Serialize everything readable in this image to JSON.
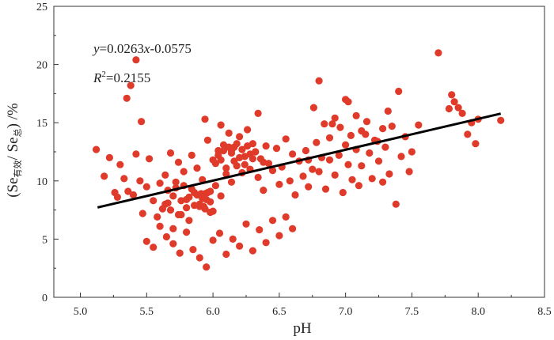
{
  "chart_data": {
    "type": "scatter",
    "title": "",
    "xlabel": "pH",
    "ylabel": {
      "prefix": "(Se",
      "sub1": "有效",
      "mid": "/ Se",
      "sub2": "总",
      "suffix": ") /%"
    },
    "xlim": [
      4.8,
      8.5
    ],
    "ylim": [
      0,
      25
    ],
    "xticks": [
      "5.0",
      "5.5",
      "6.0",
      "6.5",
      "7.0",
      "7.5",
      "8.0",
      "8.5"
    ],
    "yticks": [
      "0",
      "5",
      "10",
      "15",
      "20",
      "25"
    ],
    "grid": false,
    "marker_color": "#e03a2b",
    "line_color": "#000000",
    "annotations": {
      "equation": {
        "y": "y",
        "eq": "=0.0263",
        "x": "x",
        "rest": "-0.0575"
      },
      "r2": {
        "R": "R",
        "sup": "2",
        "rest": "=0.2155"
      }
    },
    "trend_line": {
      "x": [
        5.13,
        8.17
      ],
      "y": [
        7.72,
        15.78
      ]
    },
    "series": [
      {
        "x": [
          5.12,
          5.18,
          5.22,
          5.26,
          5.28,
          5.3,
          5.33,
          5.36,
          5.4,
          5.42,
          5.45,
          5.47,
          5.5,
          5.52,
          5.55,
          5.58,
          5.6,
          5.62,
          5.64,
          5.66,
          5.68,
          5.7,
          5.72,
          5.74,
          5.76,
          5.78,
          5.8,
          5.82,
          5.84,
          5.86,
          5.88,
          5.9,
          5.92,
          5.94,
          5.96,
          5.98,
          6.0,
          6.02,
          6.04,
          6.06,
          6.08,
          6.1,
          6.12,
          6.14,
          6.16,
          6.18,
          6.2,
          6.22,
          6.24,
          6.26,
          6.28,
          6.3,
          6.32,
          6.34,
          6.36,
          6.38,
          6.4,
          6.42,
          6.45,
          6.48,
          6.5,
          6.52,
          6.55,
          6.58,
          6.6,
          6.62,
          6.65,
          6.68,
          6.7,
          6.72,
          6.75,
          6.78,
          6.8,
          6.82,
          6.85,
          6.88,
          6.9,
          6.92,
          6.95,
          6.98,
          7.0,
          7.02,
          7.05,
          7.08,
          7.1,
          7.12,
          7.15,
          7.18,
          7.2,
          7.22,
          7.25,
          7.28,
          7.3,
          7.33,
          7.35,
          7.38,
          7.4,
          7.42,
          7.45,
          7.48,
          7.5,
          7.55,
          7.7,
          7.78,
          7.8,
          7.82,
          7.85,
          7.88,
          7.92,
          7.95,
          7.98,
          8.0,
          8.17,
          5.5,
          5.55,
          5.6,
          5.65,
          5.7,
          5.75,
          5.8,
          5.85,
          5.9,
          5.95,
          6.0,
          6.05,
          6.1,
          6.15,
          6.2,
          6.25,
          6.3,
          6.35,
          6.4,
          6.45,
          6.5,
          6.55,
          6.6,
          5.9,
          5.92,
          5.94,
          5.96,
          5.98,
          6.0,
          5.88,
          5.86,
          5.84,
          5.82,
          5.8,
          5.78,
          5.76,
          5.74,
          5.72,
          5.7,
          5.68,
          5.66,
          5.64,
          6.02,
          6.04,
          6.06,
          6.08,
          6.1,
          6.12,
          6.14,
          6.16,
          6.18,
          6.2,
          6.22,
          6.24,
          6.26,
          6.28,
          6.3,
          6.32,
          6.34,
          5.35,
          5.38,
          5.42,
          5.46,
          6.72,
          6.76,
          6.8,
          6.84,
          6.88,
          6.92,
          6.96,
          7.04,
          7.08,
          7.12,
          7.16,
          7.24,
          7.28,
          7.32,
          5.94,
          6.06,
          6.14,
          6.38,
          7.0,
          7.02,
          5.95,
          5.98,
          5.93,
          5.91
        ],
        "y": [
          12.7,
          10.4,
          12.0,
          9.0,
          8.6,
          11.4,
          10.2,
          9.1,
          8.8,
          12.3,
          10.0,
          7.2,
          9.5,
          11.9,
          8.3,
          6.9,
          9.8,
          7.6,
          10.5,
          8.1,
          12.4,
          5.9,
          9.4,
          11.6,
          7.1,
          10.8,
          8.4,
          6.6,
          12.2,
          9.0,
          11.1,
          7.8,
          10.1,
          8.9,
          13.5,
          7.3,
          11.8,
          9.6,
          12.6,
          8.7,
          13.1,
          10.6,
          14.1,
          9.9,
          12.9,
          11.3,
          13.8,
          10.7,
          12.1,
          14.4,
          11.0,
          13.2,
          12.5,
          10.3,
          11.9,
          9.2,
          13.0,
          11.5,
          10.9,
          12.8,
          9.7,
          11.2,
          13.6,
          10.0,
          12.3,
          8.8,
          11.7,
          10.4,
          12.6,
          9.5,
          11.0,
          13.3,
          10.8,
          12.0,
          9.3,
          11.8,
          14.9,
          10.5,
          12.2,
          9.0,
          13.1,
          11.4,
          10.1,
          12.7,
          9.6,
          11.3,
          14.0,
          12.4,
          10.2,
          13.5,
          11.7,
          9.9,
          12.9,
          10.6,
          14.7,
          8.0,
          17.7,
          12.1,
          13.8,
          10.8,
          12.5,
          14.8,
          21.0,
          16.2,
          17.4,
          16.8,
          16.3,
          15.8,
          14.0,
          15.0,
          13.2,
          15.3,
          15.2,
          4.8,
          4.3,
          6.1,
          5.2,
          4.6,
          3.8,
          5.6,
          4.1,
          3.4,
          2.6,
          4.9,
          5.5,
          3.7,
          5.0,
          4.4,
          6.3,
          4.0,
          5.8,
          4.7,
          6.6,
          5.3,
          6.9,
          5.9,
          8.0,
          8.5,
          7.6,
          9.0,
          8.2,
          7.4,
          8.8,
          7.9,
          9.3,
          8.6,
          7.7,
          9.6,
          8.3,
          7.1,
          9.9,
          8.7,
          7.5,
          9.2,
          8.0,
          11.5,
          12.2,
          11.8,
          12.6,
          11.1,
          12.9,
          12.4,
          11.7,
          13.2,
          12.0,
          12.7,
          11.4,
          13.0,
          12.3,
          11.9,
          12.5,
          15.8,
          17.1,
          18.2,
          20.4,
          15.1,
          11.8,
          16.3,
          18.6,
          14.9,
          13.7,
          15.4,
          14.6,
          13.9,
          15.6,
          14.3,
          15.1,
          13.4,
          14.5,
          16.0,
          15.3,
          14.8,
          12.6,
          11.6,
          17.0,
          16.8,
          8.4,
          9.1,
          7.8,
          8.9
        ]
      }
    ]
  }
}
